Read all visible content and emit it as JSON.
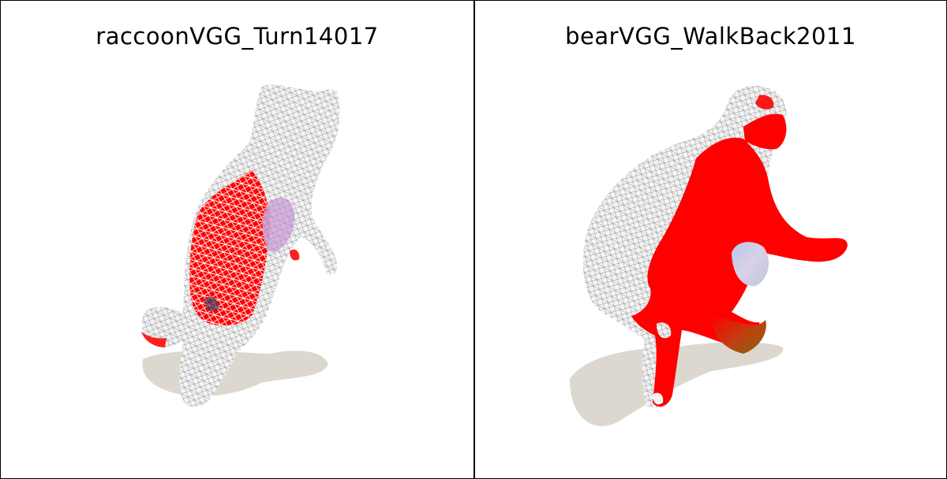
{
  "panels": [
    {
      "title": "raccoonVGG_Turn14017",
      "subject": "raccoon-mesh"
    },
    {
      "title": "bearVGG_WalkBack2011",
      "subject": "bear-mesh"
    }
  ],
  "colors": {
    "mesh_white": "#f2f2f2",
    "wire": "#8a8a8a",
    "red": "#ff0000",
    "shadow": "#dcd8d0",
    "violet": "#c9a6d8",
    "olive": "#8a6a1a"
  }
}
